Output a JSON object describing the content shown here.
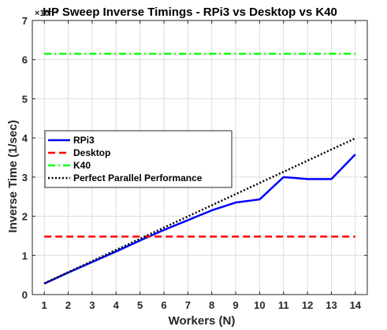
{
  "chart_data": {
    "type": "line",
    "title": "HP Sweep Inverse Timings - RPi3 vs Desktop vs K40",
    "xlabel": "Workers (N)",
    "ylabel": "Inverse Time (1/sec)",
    "y_exponent_label": "×10⁻⁴",
    "xlim": [
      0.5,
      14.5
    ],
    "ylim": [
      0,
      7
    ],
    "x_ticks": [
      1,
      2,
      3,
      4,
      5,
      6,
      7,
      8,
      9,
      10,
      11,
      12,
      13,
      14
    ],
    "y_ticks": [
      0,
      1,
      2,
      3,
      4,
      5,
      6,
      7
    ],
    "grid": true,
    "legend_position": "left",
    "series": [
      {
        "name": "RPi3",
        "color": "#0000ff",
        "style": "solid",
        "x": [
          1,
          2,
          3,
          4,
          5,
          6,
          7,
          8,
          9,
          10,
          11,
          12,
          13,
          14
        ],
        "values": [
          0.28,
          0.56,
          0.83,
          1.1,
          1.38,
          1.65,
          1.9,
          2.15,
          2.35,
          2.43,
          3.0,
          2.95,
          2.95,
          3.58
        ]
      },
      {
        "name": "Desktop",
        "color": "#ff0000",
        "style": "dashed",
        "x": [
          1,
          14
        ],
        "values": [
          1.48,
          1.48
        ]
      },
      {
        "name": "K40",
        "color": "#00ff00",
        "style": "dashdot",
        "x": [
          1,
          14
        ],
        "values": [
          6.15,
          6.15
        ]
      },
      {
        "name": "Perfect Parallel Performance",
        "color": "#000000",
        "style": "dotted",
        "x": [
          1,
          14
        ],
        "values": [
          0.285,
          3.99
        ]
      }
    ]
  }
}
